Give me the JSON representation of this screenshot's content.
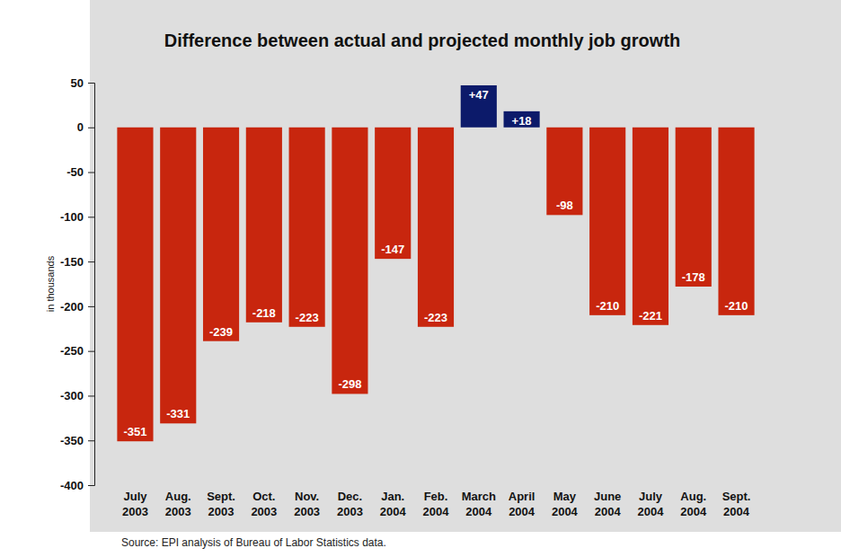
{
  "chart_data": {
    "type": "bar",
    "title": "Difference between actual and projected monthly job growth",
    "y_label": "in thousands",
    "source": "Source: EPI analysis of Bureau of Labor Statistics data.",
    "categories": [
      "July 2003",
      "Aug. 2003",
      "Sept. 2003",
      "Oct. 2003",
      "Nov. 2003",
      "Dec. 2003",
      "Jan. 2004",
      "Feb. 2004",
      "March 2004",
      "April 2004",
      "May 2004",
      "June 2004",
      "July 2004",
      "Aug. 2004",
      "Sept. 2004"
    ],
    "values": [
      -351,
      -331,
      -239,
      -218,
      -223,
      -298,
      -147,
      -223,
      47,
      18,
      -98,
      -210,
      -221,
      -178,
      -210
    ],
    "value_labels": [
      "-351",
      "-331",
      "-239",
      "-218",
      "-223",
      "-298",
      "-147",
      "-223",
      "+47",
      "+18",
      "-98",
      "-210",
      "-221",
      "-178",
      "-210"
    ],
    "colors": [
      "#c8260e",
      "#c8260e",
      "#c8260e",
      "#c8260e",
      "#c8260e",
      "#c8260e",
      "#c8260e",
      "#c8260e",
      "#0c1a6a",
      "#0c1a6a",
      "#c8260e",
      "#c8260e",
      "#c8260e",
      "#c8260e",
      "#c8260e"
    ],
    "ylim": [
      -400,
      50
    ],
    "yticks": [
      50,
      0,
      -50,
      -100,
      -150,
      -200,
      -250,
      -300,
      -350,
      -400
    ],
    "data_labels": true,
    "grid": false
  }
}
